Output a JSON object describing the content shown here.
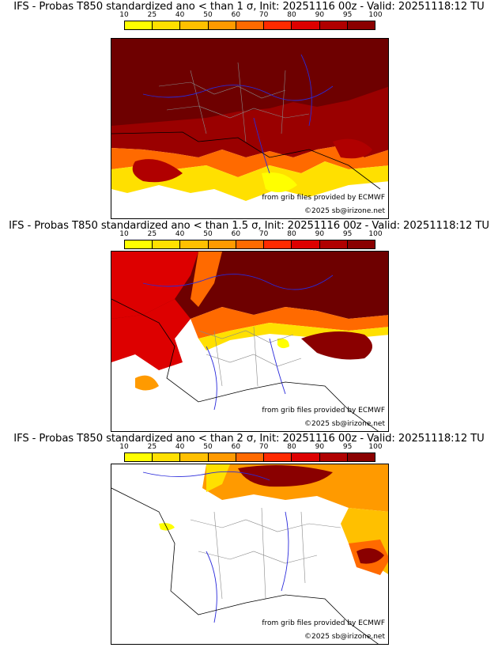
{
  "panels": [
    {
      "title": "IFS - Probas T850  standardized ano < than 1 σ, Init: 20251116 00z - Valid: 20251118:12 TU"
    },
    {
      "title": "IFS - Probas T850  standardized ano < than 1.5 σ, Init: 20251116 00z - Valid: 20251118:12 TU"
    },
    {
      "title": "IFS - Probas T850  standardized ano < than 2 σ, Init: 20251116 00z - Valid: 20251118:12 TU"
    }
  ],
  "colorbar": {
    "ticks": [
      "10",
      "25",
      "40",
      "50",
      "60",
      "70",
      "80",
      "90",
      "95",
      "100"
    ],
    "colors": [
      "#ffff00",
      "#ffe000",
      "#ffc000",
      "#ff9a00",
      "#ff6a00",
      "#ff2a00",
      "#dd0000",
      "#b00000",
      "#8a0000"
    ]
  },
  "credits": {
    "source": "from grib files provided by ECMWF",
    "copyright": "©2025 sb@irizone.net"
  }
}
